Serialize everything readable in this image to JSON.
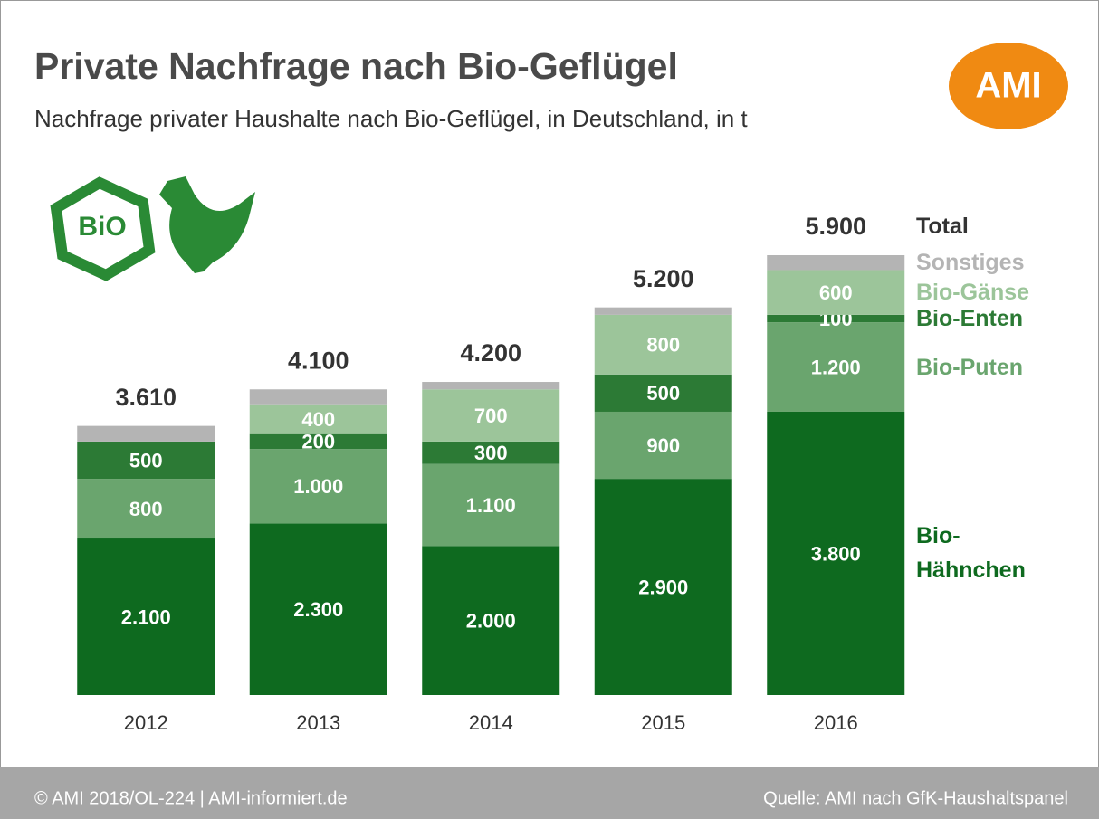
{
  "chart_data": {
    "type": "stacked-bar",
    "title": "Private Nachfrage nach Bio-Geflügel",
    "subtitle": "Nachfrage privater Haushalte nach Bio-Geflügel, in Deutschland, in t",
    "categories": [
      "2012",
      "2013",
      "2014",
      "2015",
      "2016"
    ],
    "series": [
      {
        "name": "Bio-Hähnchen",
        "color": "#0e6a1f",
        "values": [
          2100,
          2300,
          2000,
          2900,
          3800
        ],
        "value_labels": [
          "2.100",
          "2.300",
          "2.000",
          "2.900",
          "3.800"
        ]
      },
      {
        "name": "Bio-Puten",
        "color": "#6aa56e",
        "values": [
          800,
          1000,
          1100,
          900,
          1200
        ],
        "value_labels": [
          "800",
          "1.000",
          "1.100",
          "900",
          "1.200"
        ]
      },
      {
        "name": "Bio-Enten",
        "color": "#2c7a35",
        "values": [
          500,
          200,
          300,
          500,
          100
        ],
        "value_labels": [
          "500",
          "200",
          "300",
          "500",
          "100"
        ]
      },
      {
        "name": "Bio-Gänse",
        "color": "#9cc59a",
        "values": [
          0,
          400,
          700,
          800,
          600
        ],
        "value_labels": [
          null,
          "400",
          "700",
          "800",
          "600"
        ]
      },
      {
        "name": "Sonstiges",
        "color": "#b4b4b4",
        "values": [
          210,
          200,
          100,
          100,
          200
        ]
      }
    ],
    "totals": {
      "name": "Total",
      "color": "#333333",
      "values": [
        3610,
        4100,
        4200,
        5200,
        5900
      ],
      "value_labels": [
        "3.610",
        "4.100",
        "4.200",
        "5.200",
        "5.900"
      ]
    }
  },
  "logo": "AMI",
  "badge": "BiO",
  "footer": {
    "left": "© AMI 2018/OL-224 | AMI-informiert.de",
    "right": "Quelle: AMI nach GfK-Haushaltspanel"
  }
}
